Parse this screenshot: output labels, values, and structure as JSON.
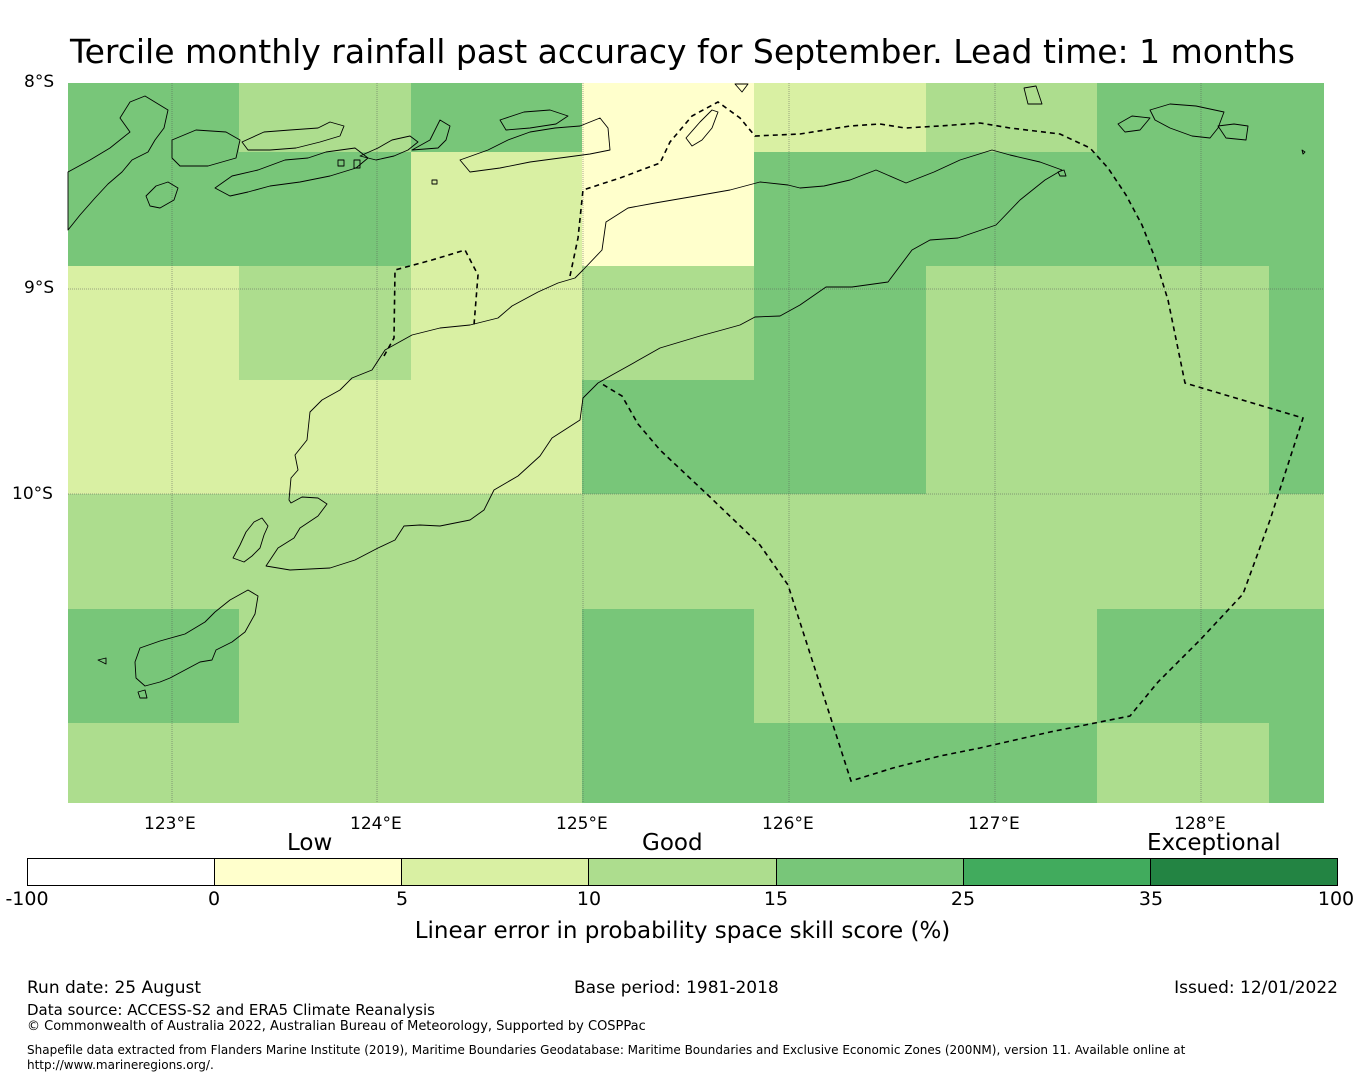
{
  "title": "Tercile monthly rainfall past accuracy for September. Lead time: 1 months",
  "map": {
    "lat_labels": [
      "8°S",
      "9°S",
      "10°S"
    ],
    "lon_labels": [
      "123°E",
      "124°E",
      "125°E",
      "126°E",
      "127°E",
      "128°E"
    ]
  },
  "legend": {
    "categories": [
      "Low",
      "Good",
      "Exceptional"
    ],
    "ticks": [
      "-100",
      "0",
      "5",
      "10",
      "15",
      "25",
      "35",
      "100"
    ],
    "colors": [
      "#ffffff",
      "#ffffcc",
      "#d9f0a3",
      "#addd8e",
      "#78c679",
      "#41ab5d",
      "#238443"
    ],
    "label": "Linear error in probability space skill score (%)"
  },
  "footer": {
    "run_date": "Run date: 25 August",
    "base_period": "Base period: 1981-2018",
    "issued": "Issued: 12/01/2022",
    "data_source": "Data source: ACCESS-S2 and ERA5 Climate Reanalysis",
    "copyright": "© Commonwealth of Australia 2022, Australian Bureau of Meteorology, Supported by COSPPac",
    "shapefile_line1": "Shapefile data extracted from Flanders Marine Institute (2019), Maritime Boundaries Geodatabase: Maritime Boundaries and Exclusive Economic Zones (200NM), version 11. Available online at",
    "shapefile_line2": "http://www.marineregions.org/."
  }
}
